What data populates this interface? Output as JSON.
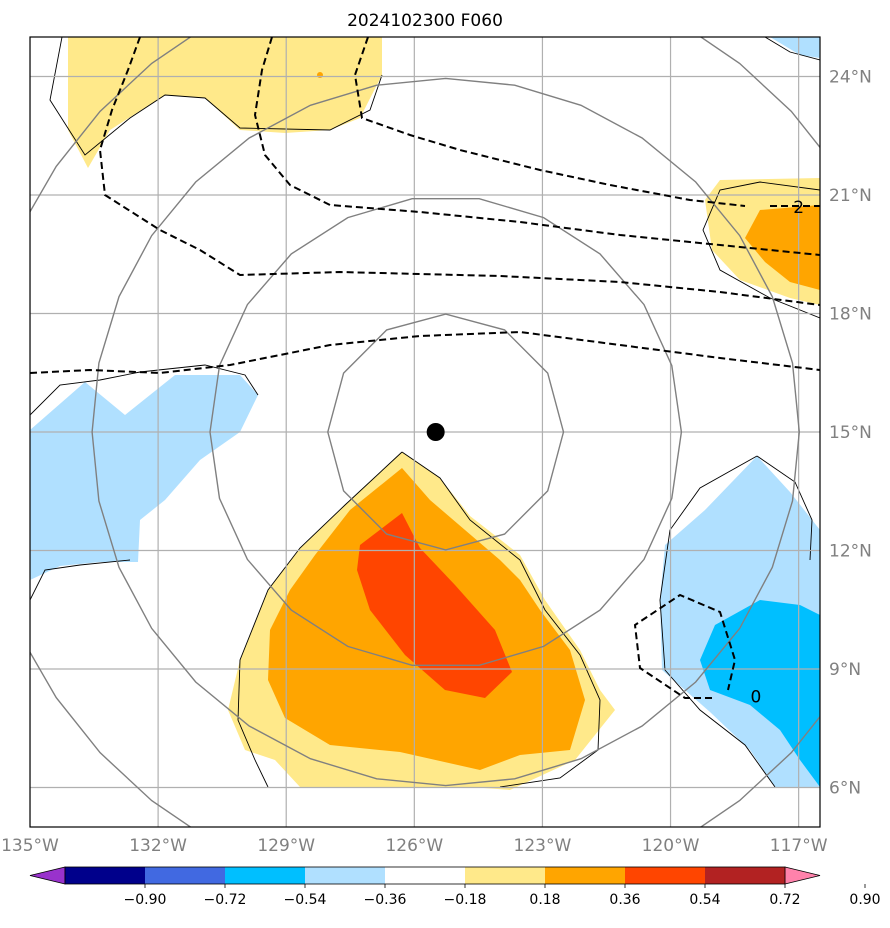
{
  "title": "2024102300 F060",
  "colors": {
    "frame": "#000000",
    "gridlines": "#b0b0b0",
    "circles": "#808080",
    "dashed_contours": "#000000",
    "axis_label_color": "#808080"
  },
  "map": {
    "lon_range": [
      -135,
      -116.5
    ],
    "lat_range": [
      5,
      25
    ],
    "lon_ticks": [
      {
        "value": -135,
        "label": "135°W"
      },
      {
        "value": -132,
        "label": "132°W"
      },
      {
        "value": -129,
        "label": "129°W"
      },
      {
        "value": -126,
        "label": "126°W"
      },
      {
        "value": -123,
        "label": "123°W"
      },
      {
        "value": -120,
        "label": "120°W"
      },
      {
        "value": -117,
        "label": "117°W"
      }
    ],
    "lat_ticks": [
      {
        "value": 24,
        "label": "24°N"
      },
      {
        "value": 21,
        "label": "21°N"
      },
      {
        "value": 18,
        "label": "18°N"
      },
      {
        "value": 15,
        "label": "15°N"
      },
      {
        "value": 12,
        "label": "12°N"
      },
      {
        "value": 9,
        "label": "9°N"
      },
      {
        "value": 6,
        "label": "6°N"
      }
    ],
    "center_marker": {
      "lon": -125.5,
      "lat": 15
    },
    "range_circle_radii_deg": [
      3,
      6,
      9,
      12
    ],
    "contour_labels": [
      {
        "text": "2",
        "lon": -117,
        "lat": 20.7
      },
      {
        "text": "0",
        "lon": -118,
        "lat": 8.3
      }
    ]
  },
  "colorbar": {
    "levels": [
      "−0.90",
      "−0.72",
      "−0.54",
      "−0.36",
      "−0.18",
      "0.18",
      "0.36",
      "0.54",
      "0.72",
      "0.90"
    ],
    "colors": [
      "#9932cc",
      "#00008b",
      "#4169e1",
      "#00bfff",
      "#b0e0ff",
      "#ffffff",
      "#ffe98a",
      "#ffa500",
      "#ff4500",
      "#b22222",
      "#ff82ab"
    ]
  }
}
